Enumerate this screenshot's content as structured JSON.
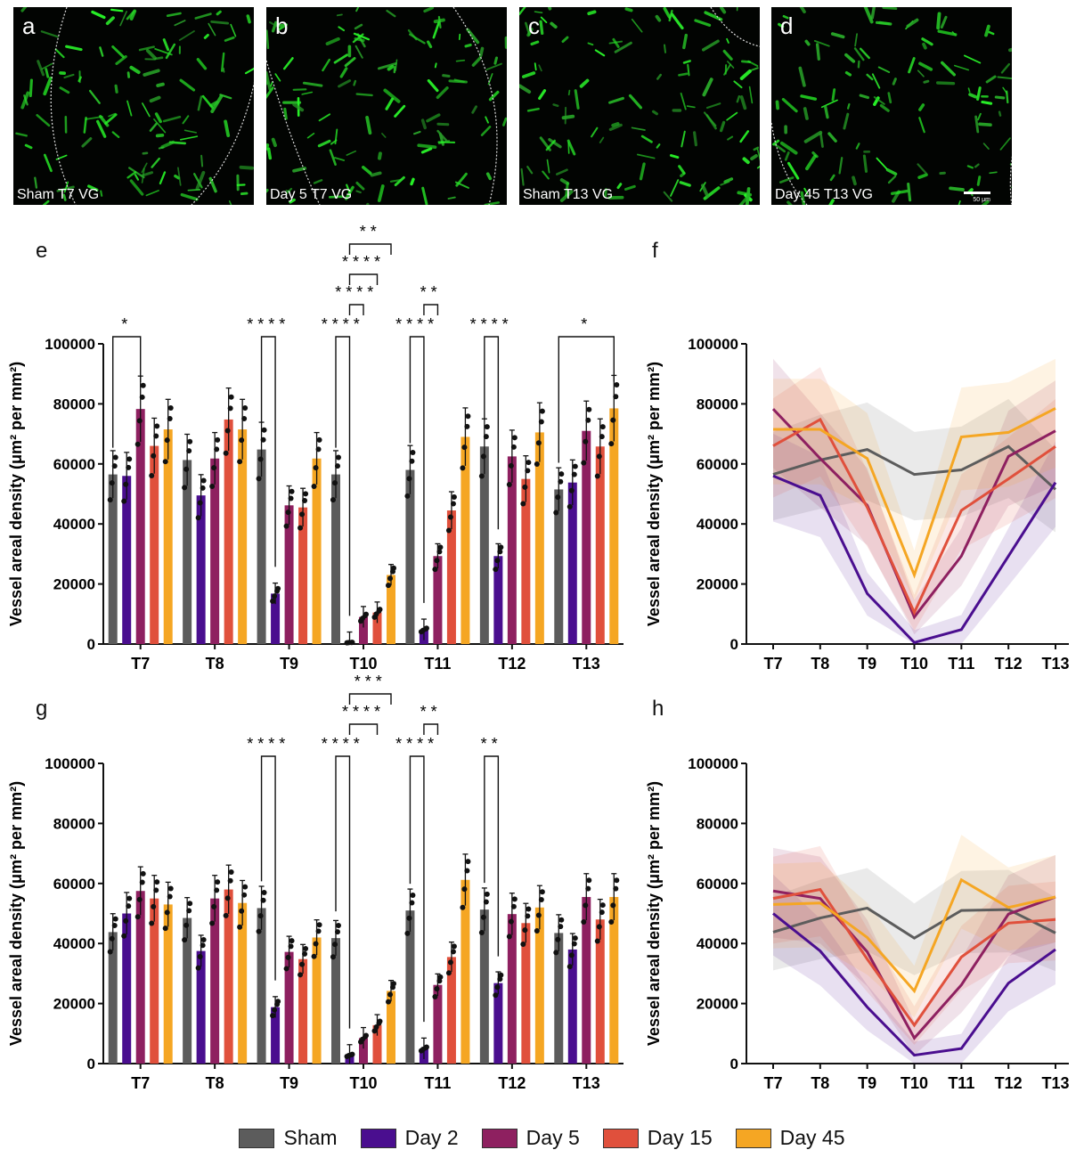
{
  "micrographs": [
    {
      "panel": "a",
      "caption": "Sham T7 VG"
    },
    {
      "panel": "b",
      "caption": "Day 5 T7 VG"
    },
    {
      "panel": "c",
      "caption": "Sham T13 VG"
    },
    {
      "panel": "d",
      "caption": "Day 45 T13 VG",
      "scale": "50 μm"
    }
  ],
  "panel_labels": {
    "e": "e",
    "f": "f",
    "g": "g",
    "h": "h"
  },
  "legend": [
    {
      "name": "Sham",
      "color": "#5c5c5c"
    },
    {
      "name": "Day 2",
      "color": "#4a0e8f"
    },
    {
      "name": "Day 5",
      "color": "#8e2060"
    },
    {
      "name": "Day 15",
      "color": "#e0503c"
    },
    {
      "name": "Day 45",
      "color": "#f5a623"
    }
  ],
  "chart_data": [
    {
      "panel": "e",
      "type": "bar",
      "ylabel": "Vessel areal density (μm² per mm²)",
      "ylim": [
        0,
        100000
      ],
      "yticks": [
        "0",
        "20000",
        "40000",
        "60000",
        "80000",
        "100000"
      ],
      "categories": [
        "T7",
        "T8",
        "T9",
        "T10",
        "T11",
        "T12",
        "T13"
      ],
      "series": [
        {
          "name": "Sham",
          "values": [
            56500,
            61300,
            64800,
            56500,
            58000,
            65800,
            51500
          ]
        },
        {
          "name": "Day 2",
          "values": [
            56000,
            49500,
            16800,
            500,
            4800,
            29300,
            53800
          ]
        },
        {
          "name": "Day 5",
          "values": [
            78300,
            61800,
            46200,
            9000,
            29300,
            62500,
            71000
          ]
        },
        {
          "name": "Day 15",
          "values": [
            66000,
            74800,
            45500,
            10500,
            44500,
            55000,
            65800
          ]
        },
        {
          "name": "Day 45",
          "values": [
            71500,
            71500,
            61800,
            23000,
            69000,
            70500,
            78500
          ]
        }
      ],
      "significance": [
        {
          "category": "T7",
          "pairs": [
            [
              "Sham",
              "Day 5"
            ]
          ],
          "labels": [
            "*"
          ]
        },
        {
          "category": "T9",
          "pairs": [
            [
              "Sham",
              "Day 2"
            ]
          ],
          "labels": [
            "****"
          ]
        },
        {
          "category": "T10",
          "pairs": [
            [
              "Sham",
              "Day 2"
            ],
            [
              "Day 2",
              "Day 5"
            ],
            [
              "Day 2",
              "Day 15"
            ],
            [
              "Day 2",
              "Day 45"
            ]
          ],
          "labels": [
            "****",
            "****",
            "****",
            "**"
          ]
        },
        {
          "category": "T11",
          "pairs": [
            [
              "Sham",
              "Day 2"
            ],
            [
              "Day 2",
              "Day 5"
            ]
          ],
          "labels": [
            "****",
            "**"
          ]
        },
        {
          "category": "T12",
          "pairs": [
            [
              "Sham",
              "Day 2"
            ]
          ],
          "labels": [
            "****"
          ]
        },
        {
          "category": "T13",
          "pairs": [
            [
              "Sham",
              "Day 45"
            ]
          ],
          "labels": [
            "*"
          ]
        }
      ]
    },
    {
      "panel": "f",
      "type": "line",
      "ylabel": "Vessel areal density (μm² per mm²)",
      "ylim": [
        0,
        100000
      ],
      "yticks": [
        "0",
        "20000",
        "40000",
        "60000",
        "80000",
        "100000"
      ],
      "categories": [
        "T7",
        "T8",
        "T9",
        "T10",
        "T11",
        "T12",
        "T13"
      ],
      "series": [
        {
          "name": "Sham",
          "values": [
            56500,
            61300,
            64800,
            56500,
            58000,
            65800,
            51500
          ]
        },
        {
          "name": "Day 2",
          "values": [
            56000,
            49500,
            16800,
            500,
            4800,
            29300,
            53800
          ]
        },
        {
          "name": "Day 5",
          "values": [
            78300,
            61800,
            46200,
            9000,
            29300,
            62500,
            71000
          ]
        },
        {
          "name": "Day 15",
          "values": [
            66000,
            74800,
            45500,
            10500,
            44500,
            55000,
            65800
          ]
        },
        {
          "name": "Day 45",
          "values": [
            71500,
            71500,
            61800,
            23000,
            69000,
            70500,
            78500
          ]
        }
      ]
    },
    {
      "panel": "g",
      "type": "bar",
      "ylabel": "Vessel areal density (μm² per mm²)",
      "ylim": [
        0,
        100000
      ],
      "yticks": [
        "0",
        "20000",
        "40000",
        "60000",
        "80000",
        "100000"
      ],
      "categories": [
        "T7",
        "T8",
        "T9",
        "T10",
        "T11",
        "T12",
        "T13"
      ],
      "series": [
        {
          "name": "Sham",
          "values": [
            43800,
            48500,
            51800,
            41800,
            51000,
            51300,
            43500
          ]
        },
        {
          "name": "Day 2",
          "values": [
            50000,
            37500,
            18800,
            2800,
            5000,
            26800,
            38000
          ]
        },
        {
          "name": "Day 5",
          "values": [
            57500,
            55000,
            37200,
            8500,
            26200,
            49800,
            55500
          ]
        },
        {
          "name": "Day 15",
          "values": [
            55000,
            58000,
            34800,
            12800,
            35500,
            46800,
            48000
          ]
        },
        {
          "name": "Day 45",
          "values": [
            53000,
            53500,
            42000,
            24200,
            61200,
            52000,
            55500
          ]
        }
      ],
      "significance": [
        {
          "category": "T9",
          "pairs": [
            [
              "Sham",
              "Day 2"
            ]
          ],
          "labels": [
            "****"
          ]
        },
        {
          "category": "T10",
          "pairs": [
            [
              "Sham",
              "Day 2"
            ],
            [
              "Day 2",
              "Day 15"
            ],
            [
              "Day 2",
              "Day 45"
            ]
          ],
          "labels": [
            "****",
            "****",
            "***"
          ]
        },
        {
          "category": "T11",
          "pairs": [
            [
              "Sham",
              "Day 2"
            ],
            [
              "Day 2",
              "Day 5"
            ]
          ],
          "labels": [
            "****",
            "**"
          ]
        },
        {
          "category": "T12",
          "pairs": [
            [
              "Sham",
              "Day 2"
            ]
          ],
          "labels": [
            "**"
          ]
        }
      ]
    },
    {
      "panel": "h",
      "type": "line",
      "ylabel": "Vessel areal density (μm² per mm²)",
      "ylim": [
        0,
        100000
      ],
      "yticks": [
        "0",
        "20000",
        "40000",
        "60000",
        "80000",
        "100000"
      ],
      "categories": [
        "T7",
        "T8",
        "T9",
        "T10",
        "T11",
        "T12",
        "T13"
      ],
      "series": [
        {
          "name": "Sham",
          "values": [
            43800,
            48500,
            51800,
            41800,
            51000,
            51300,
            43500
          ]
        },
        {
          "name": "Day 2",
          "values": [
            50000,
            37500,
            18800,
            2800,
            5000,
            26800,
            38000
          ]
        },
        {
          "name": "Day 5",
          "values": [
            57500,
            55000,
            37200,
            8500,
            26200,
            49800,
            55500
          ]
        },
        {
          "name": "Day 15",
          "values": [
            55000,
            58000,
            34800,
            12800,
            35500,
            46800,
            48000
          ]
        },
        {
          "name": "Day 45",
          "values": [
            53000,
            53500,
            42000,
            24200,
            61200,
            52000,
            55500
          ]
        }
      ]
    }
  ]
}
